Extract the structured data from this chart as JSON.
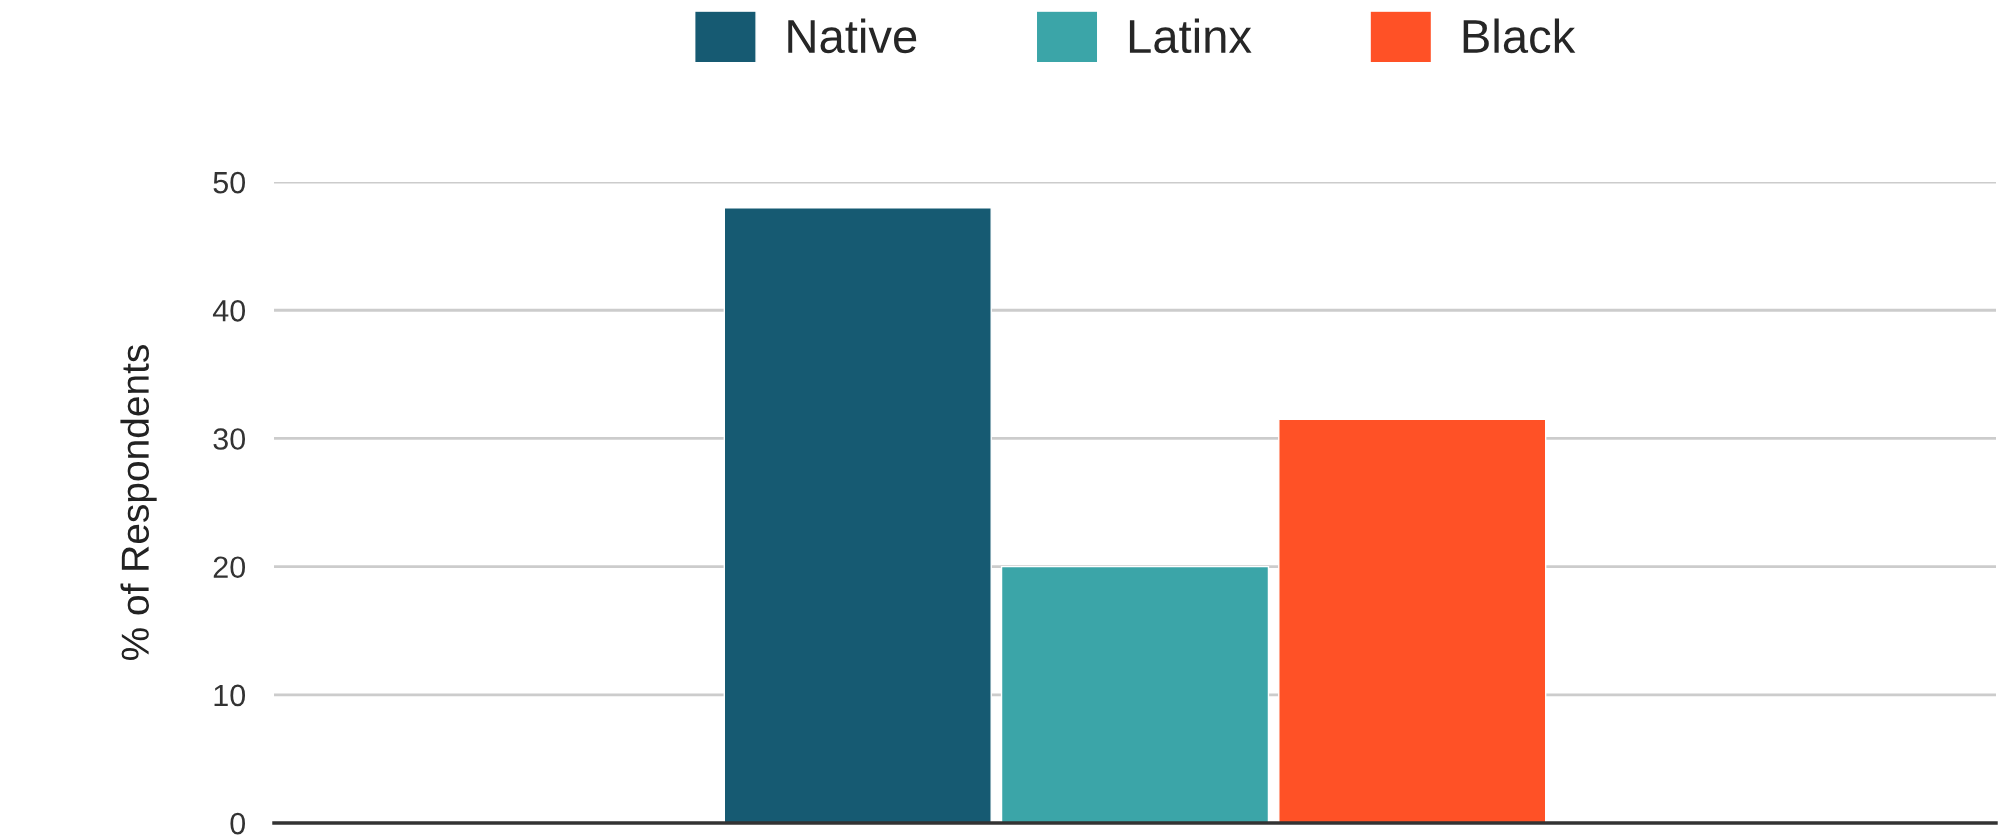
{
  "chart_data": {
    "type": "bar",
    "ylabel": "% of Respondents",
    "categories": [
      null
    ],
    "series": [
      {
        "name": "Native",
        "color": "#165a72",
        "values": [
          48
        ]
      },
      {
        "name": "Latinx",
        "color": "#3ba5a8",
        "values": [
          20
        ]
      },
      {
        "name": "Black",
        "color": "#ff5126",
        "values": [
          31.5
        ]
      }
    ],
    "ylim": [
      0,
      50
    ],
    "yticks": [
      0,
      10,
      20,
      30,
      40,
      50
    ],
    "grid": "y",
    "legend": "top",
    "tick_labels": "y"
  }
}
